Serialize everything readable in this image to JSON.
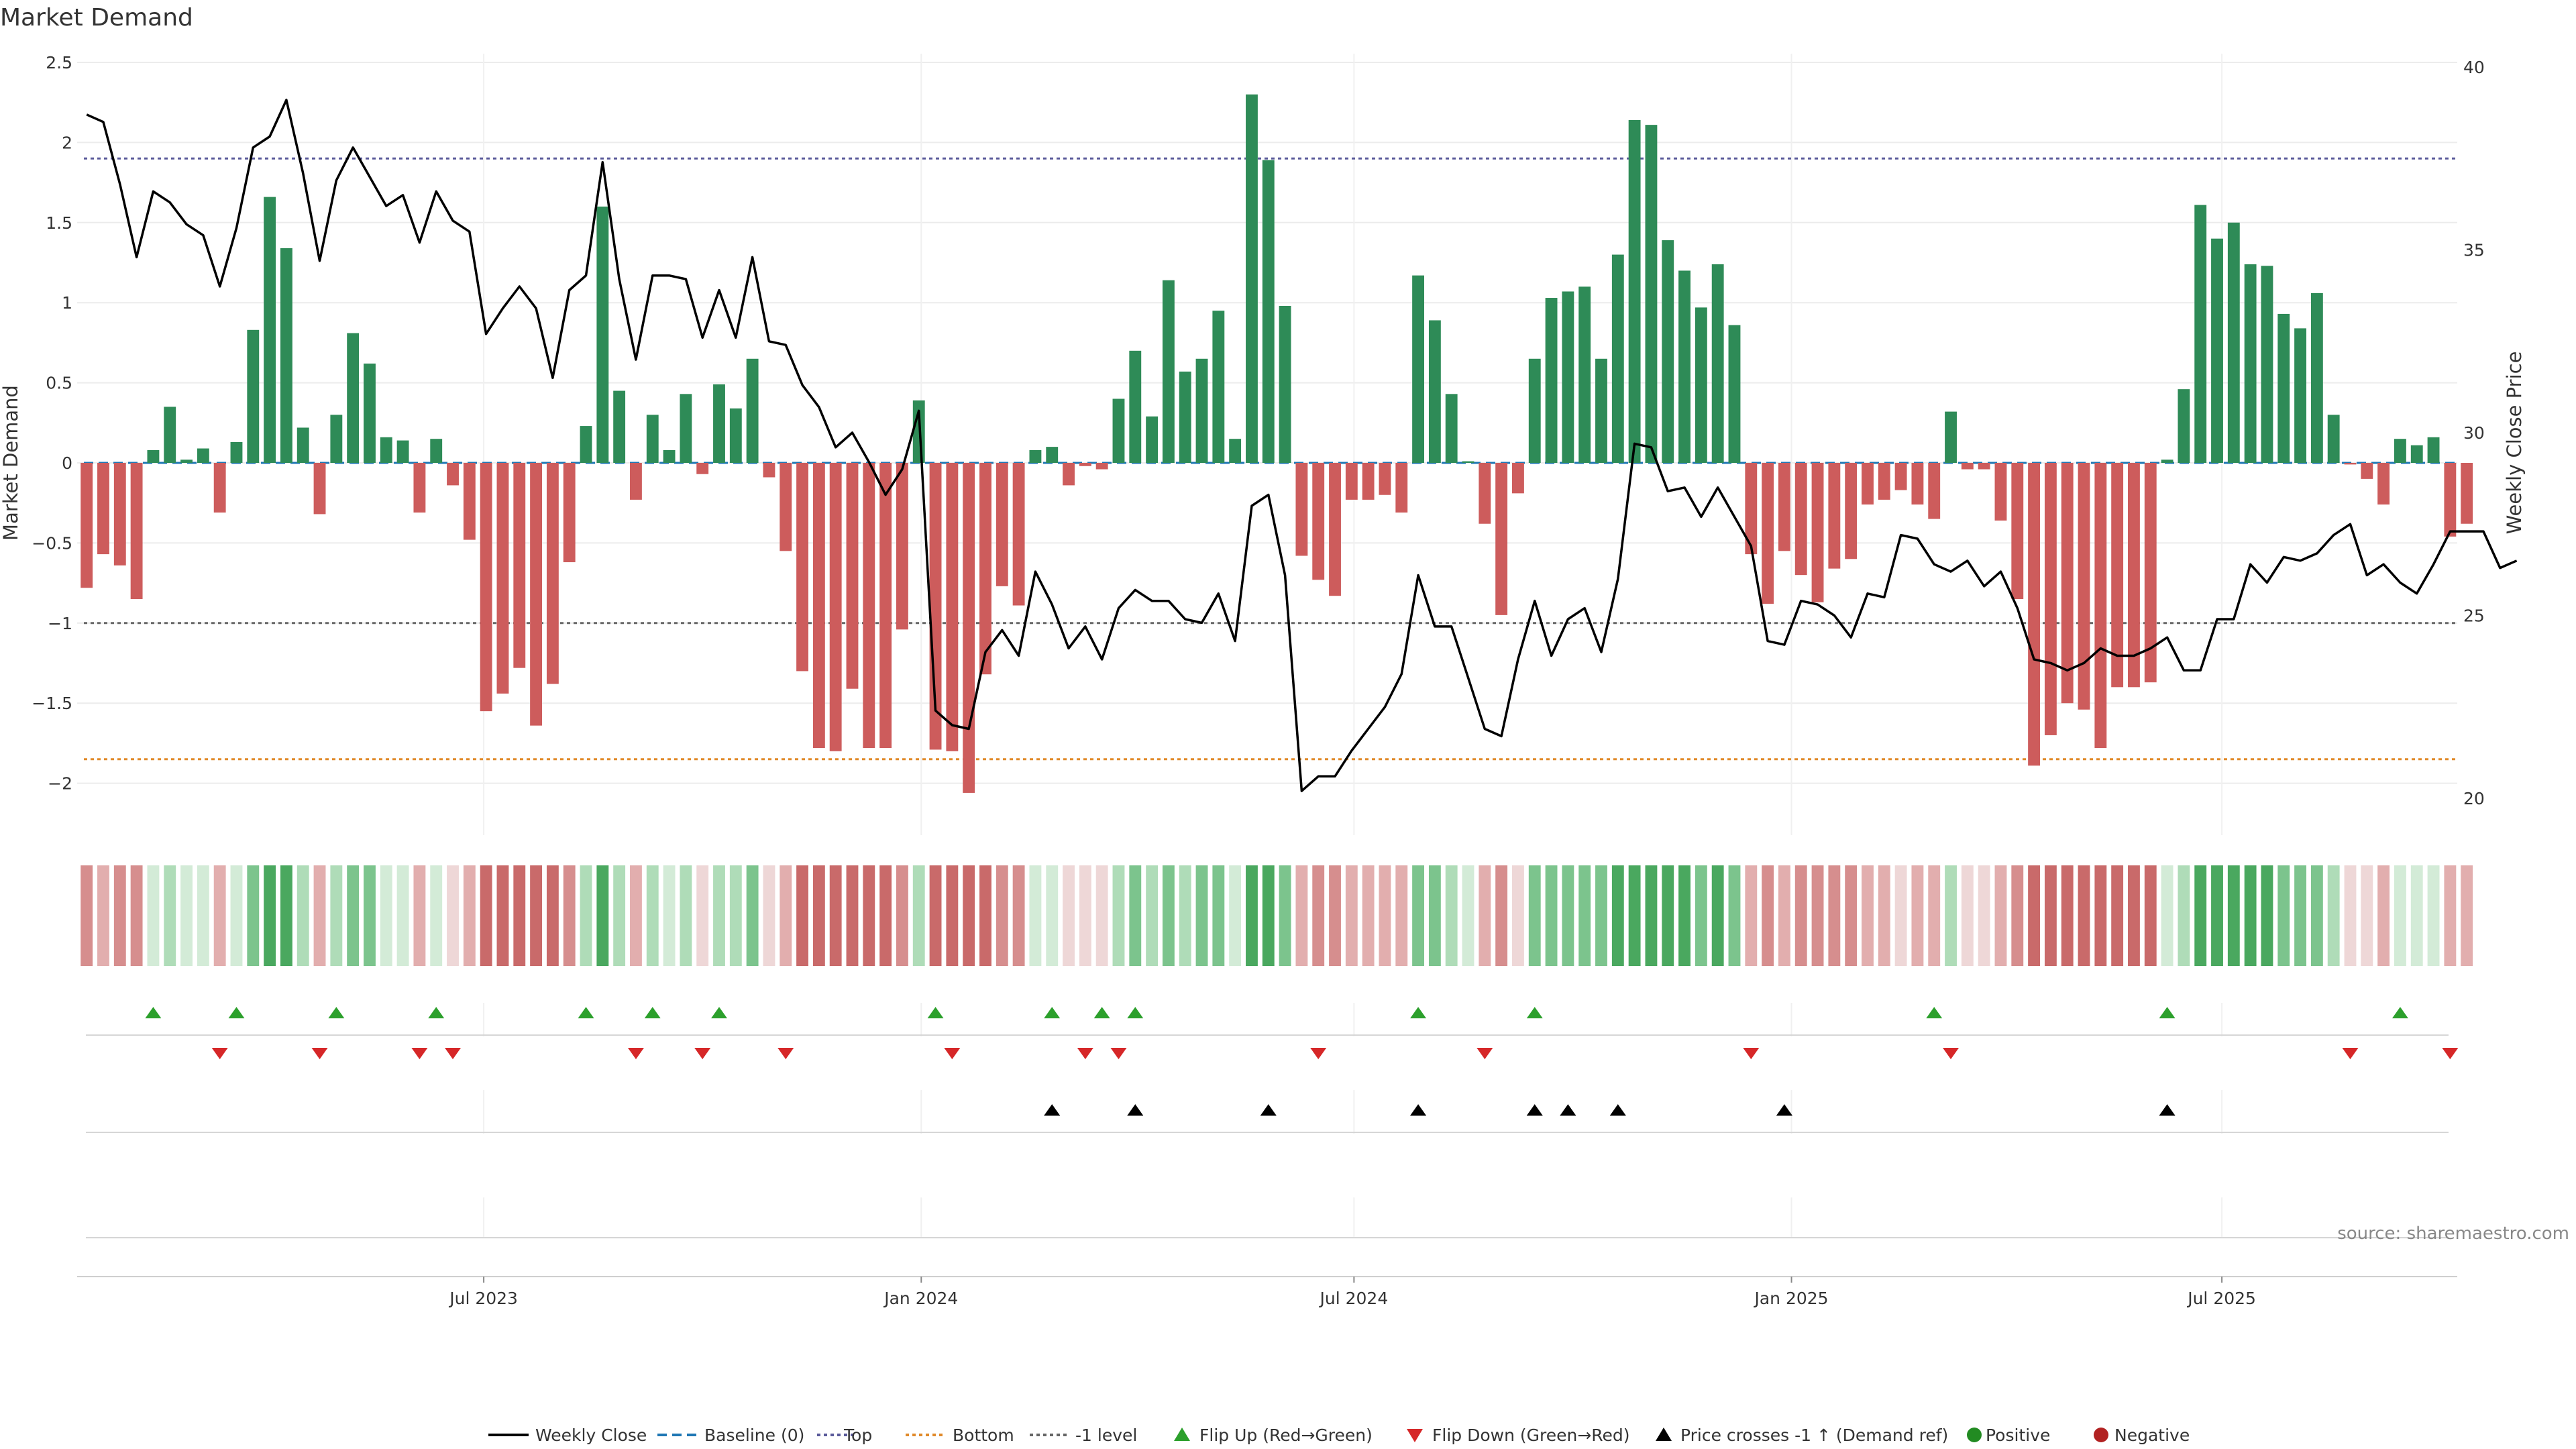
{
  "chart_data": {
    "type": "bar+line",
    "title": "Market Demand",
    "ylabel": "Market Demand",
    "y2label": "Weekly Close Price",
    "ylim": [
      -2.3,
      2.5
    ],
    "y2lim": [
      19,
      40.2
    ],
    "yticks": [
      2.5,
      2,
      1.5,
      1,
      0.5,
      0,
      -0.5,
      -1,
      -1.5,
      -2
    ],
    "ytick_labels": [
      "2.5",
      "2",
      "1.5",
      "1",
      "0.5",
      "0",
      "−0.5",
      "−1",
      "−1.5",
      "−2"
    ],
    "y2ticks": [
      40,
      35,
      30,
      25,
      20
    ],
    "y2tick_labels": [
      "40",
      "35",
      "30",
      "25",
      "20"
    ],
    "x_start": "2023-01-15",
    "x_step_days": 7,
    "x_range": [
      "2023-01-11",
      "2025-10-08"
    ],
    "xticks": [
      {
        "date": "2023-07-01",
        "label": "Jul 2023"
      },
      {
        "date": "2024-01-01",
        "label": "Jan 2024"
      },
      {
        "date": "2024-07-01",
        "label": "Jul 2024"
      },
      {
        "date": "2025-01-01",
        "label": "Jan 2025"
      },
      {
        "date": "2025-07-01",
        "label": "Jul 2025"
      }
    ],
    "levels": {
      "top": 1.9,
      "bottom": -1.85,
      "minus_one": -1.0,
      "baseline": 0
    },
    "demand": [
      -0.78,
      -0.57,
      -0.64,
      -0.85,
      0.08,
      0.35,
      0.02,
      0.09,
      -0.31,
      0.13,
      0.83,
      1.66,
      1.34,
      0.22,
      -0.32,
      0.3,
      0.81,
      0.62,
      0.16,
      0.14,
      -0.31,
      0.15,
      -0.14,
      -0.48,
      -1.55,
      -1.44,
      -1.28,
      -1.64,
      -1.38,
      -0.62,
      0.23,
      1.6,
      0.45,
      -0.23,
      0.3,
      0.08,
      0.43,
      -0.07,
      0.49,
      0.34,
      0.65,
      -0.09,
      -0.55,
      -1.3,
      -1.78,
      -1.8,
      -1.41,
      -1.78,
      -1.78,
      -1.04,
      0.39,
      -1.79,
      -1.8,
      -2.06,
      -1.32,
      -0.77,
      -0.89,
      0.08,
      0.1,
      -0.14,
      -0.02,
      -0.04,
      0.4,
      0.7,
      0.29,
      1.14,
      0.57,
      0.65,
      0.95,
      0.15,
      2.3,
      1.89,
      0.98,
      -0.58,
      -0.73,
      -0.83,
      -0.23,
      -0.23,
      -0.2,
      -0.31,
      1.17,
      0.89,
      0.43,
      0.01,
      -0.38,
      -0.95,
      -0.19,
      0.65,
      1.03,
      1.07,
      1.1,
      0.65,
      1.3,
      2.14,
      2.11,
      1.39,
      1.2,
      0.97,
      1.24,
      0.86,
      -0.57,
      -0.88,
      -0.55,
      -0.7,
      -0.87,
      -0.66,
      -0.6,
      -0.26,
      -0.23,
      -0.17,
      -0.26,
      -0.35,
      0.32,
      -0.04,
      -0.04,
      -0.36,
      -0.85,
      -1.89,
      -1.7,
      -1.5,
      -1.54,
      -1.78,
      -1.4,
      -1.4,
      -1.37,
      0.02,
      0.46,
      1.61,
      1.4,
      1.5,
      1.24,
      1.23,
      0.93,
      0.84,
      1.06,
      0.3,
      -0.01,
      -0.1,
      -0.26,
      0.15,
      0.11,
      0.16,
      -0.46,
      -0.38
    ],
    "close": [
      38.7,
      38.5,
      36.8,
      34.8,
      36.6,
      36.3,
      35.7,
      35.4,
      34.0,
      35.6,
      37.8,
      38.1,
      39.1,
      37.1,
      34.7,
      36.9,
      37.8,
      37.0,
      36.2,
      36.5,
      35.2,
      36.6,
      35.8,
      35.5,
      32.7,
      33.4,
      34.0,
      33.4,
      31.5,
      33.9,
      34.3,
      37.4,
      34.2,
      32.0,
      34.3,
      34.3,
      34.2,
      32.6,
      33.9,
      32.6,
      34.8,
      32.5,
      32.4,
      31.3,
      30.7,
      29.6,
      30.0,
      29.2,
      28.3,
      29.0,
      30.6,
      22.4,
      22.0,
      21.9,
      24.0,
      24.6,
      23.9,
      26.2,
      25.3,
      24.1,
      24.7,
      23.8,
      25.2,
      25.7,
      25.4,
      25.4,
      24.9,
      24.8,
      25.6,
      24.3,
      28.0,
      28.3,
      26.1,
      20.2,
      20.6,
      20.6,
      21.3,
      21.9,
      22.5,
      23.4,
      26.1,
      24.7,
      24.7,
      23.3,
      21.9,
      21.7,
      23.8,
      25.4,
      23.9,
      24.9,
      25.2,
      24.0,
      26.0,
      29.7,
      29.6,
      28.4,
      28.5,
      27.7,
      28.5,
      27.7,
      26.9,
      24.3,
      24.2,
      25.4,
      25.3,
      25.0,
      24.4,
      25.6,
      25.5,
      27.2,
      27.1,
      26.4,
      26.2,
      26.5,
      25.8,
      26.2,
      25.2,
      23.8,
      23.7,
      23.5,
      23.7,
      24.1,
      23.9,
      23.9,
      24.1,
      24.4,
      23.5,
      23.5,
      24.9,
      24.9,
      26.4,
      25.9,
      26.6,
      26.5,
      26.7,
      27.2,
      27.5,
      26.1,
      26.4,
      25.9,
      25.6,
      26.4,
      27.3,
      27.3,
      27.3,
      26.3,
      26.5
    ],
    "colormap": {
      "neg": [
        "#eed7d7",
        "#e2aeae",
        "#d68e8e",
        "#c96a6a"
      ],
      "pos": [
        "#d3ebd7",
        "#afdcb8",
        "#7cc48d",
        "#4aa85f"
      ],
      "thresholds": [
        0.2,
        0.6,
        1.2
      ]
    },
    "flip_up_indices": [
      4,
      9,
      15,
      21,
      30,
      34,
      38,
      51,
      58,
      61,
      63,
      80,
      87,
      111,
      125,
      139
    ],
    "flip_down_indices": [
      8,
      14,
      20,
      22,
      33,
      37,
      42,
      52,
      60,
      62,
      74,
      84,
      100,
      112,
      136,
      142
    ],
    "price_cross_indices": [
      58,
      63,
      71,
      80,
      87,
      89,
      92,
      102,
      125
    ],
    "colors": {
      "positive": "#2e8b57",
      "negative": "#cd5c5c",
      "close": "#000000",
      "baseline": "#1f77b4",
      "top": "#5a5a9a",
      "bottom": "#e08a2a",
      "minus_one": "#666666",
      "flip_up": "#2ca02c",
      "flip_down": "#d62728",
      "price_cross": "#000000",
      "legend_positive": "#228b22",
      "legend_negative": "#b22222"
    },
    "legend": [
      {
        "label": "Weekly Close",
        "kind": "line",
        "color": "#000000"
      },
      {
        "label": "Baseline (0)",
        "kind": "dashed",
        "color": "#1f77b4"
      },
      {
        "label": "Top",
        "kind": "dotted",
        "color": "#5a5a9a"
      },
      {
        "label": "Bottom",
        "kind": "dotted",
        "color": "#e08a2a"
      },
      {
        "label": "-1 level",
        "kind": "dotted",
        "color": "#666666"
      },
      {
        "label": "Flip Up (Red→Green)",
        "kind": "tri-up",
        "color": "#2ca02c"
      },
      {
        "label": "Flip Down (Green→Red)",
        "kind": "tri-down",
        "color": "#d62728"
      },
      {
        "label": "Price crosses -1 ↑ (Demand ref)",
        "kind": "tri-up",
        "color": "#000000"
      },
      {
        "label": "Positive",
        "kind": "dot",
        "color": "#228b22"
      },
      {
        "label": "Negative",
        "kind": "dot",
        "color": "#b22222"
      }
    ],
    "source": "source: sharemaestro.com"
  }
}
